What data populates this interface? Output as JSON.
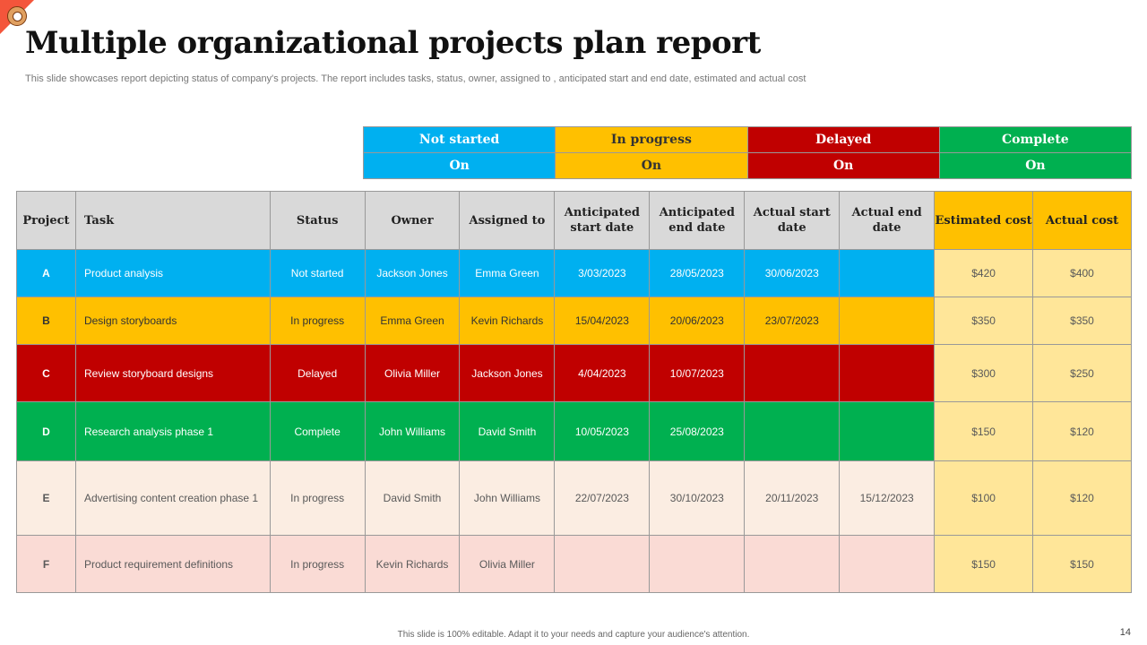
{
  "title": "Multiple organizational projects plan report",
  "subtitle": "This slide showcases report depicting status of company's projects. The report includes tasks, status, owner, assigned to , anticipated start and end date, estimated and actual cost",
  "legend": [
    {
      "label": "Not started",
      "value": "On",
      "color": "#00B0F0",
      "text": "#fff"
    },
    {
      "label": "In progress",
      "value": "On",
      "color": "#FFC000",
      "text": "#333"
    },
    {
      "label": "Delayed",
      "value": "On",
      "color": "#C00000",
      "text": "#fff"
    },
    {
      "label": "Complete",
      "value": "On",
      "color": "#00B050",
      "text": "#fff"
    }
  ],
  "headers": [
    "Project",
    "Task",
    "Status",
    "Owner",
    "Assigned to",
    "Anticipated start date",
    "Anticipated end date",
    "Actual start date",
    "Actual end date",
    "Estimated cost",
    "Actual cost"
  ],
  "rows": [
    {
      "cells": [
        "A",
        "Product analysis",
        "Not started",
        "Jackson Jones",
        "Emma Green",
        "3/03/2023",
        "28/05/2023",
        "30/06/2023",
        "",
        "$420",
        "$400"
      ],
      "bg": "#00B0F0",
      "text": "#fff",
      "h": 53
    },
    {
      "cells": [
        "B",
        "Design storyboards",
        "In progress",
        "Emma Green",
        "Kevin Richards",
        "15/04/2023",
        "20/06/2023",
        "23/07/2023",
        "",
        "$350",
        "$350"
      ],
      "bg": "#FFC000",
      "text": "#333",
      "h": 53
    },
    {
      "cells": [
        "C",
        "Review storyboard designs",
        "Delayed",
        "Olivia Miller",
        "Jackson Jones",
        "4/04/2023",
        "10/07/2023",
        "",
        "",
        "$300",
        "$250"
      ],
      "bg": "#C00000",
      "text": "#fff",
      "h": 64
    },
    {
      "cells": [
        "D",
        "Research analysis phase 1",
        "Complete",
        "John Williams",
        "David Smith",
        "10/05/2023",
        "25/08/2023",
        "",
        "",
        "$150",
        "$120"
      ],
      "bg": "#00B050",
      "text": "#fff",
      "h": 66
    },
    {
      "cells": [
        "E",
        "Advertising content creation phase 1",
        "In progress",
        "David Smith",
        "John Williams",
        "22/07/2023",
        "30/10/2023",
        "20/11/2023",
        "15/12/2023",
        "$100",
        "$120"
      ],
      "bg": "#FBEDE2",
      "text": "#595959",
      "h": 83
    },
    {
      "cells": [
        "F",
        "Product requirement definitions",
        "In progress",
        "Kevin Richards",
        "Olivia Miller",
        "",
        "",
        "",
        "",
        "$150",
        "$150"
      ],
      "bg": "#FADBD5",
      "text": "#595959",
      "h": 64
    }
  ],
  "footer": "This slide is 100% editable.  Adapt it to your needs and capture your audience's attention.",
  "page_number": "14"
}
